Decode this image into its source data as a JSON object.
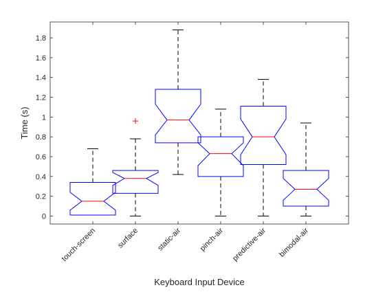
{
  "chart_data": {
    "type": "boxplot",
    "notched": true,
    "xlabel": "Keyboard Input Device",
    "ylabel": "Time (s)",
    "ylim": [
      -0.08,
      1.96
    ],
    "yticks": [
      0,
      0.2,
      0.4,
      0.6,
      0.8,
      1,
      1.2,
      1.4,
      1.6,
      1.8
    ],
    "ytick_labels": [
      "0",
      "0.2",
      "0.4",
      "0.6",
      "0.8",
      "1",
      "1.2",
      "1.4",
      "1.6",
      "1.8"
    ],
    "categories": [
      "touch-screen",
      "surface",
      "static-air",
      "pinch-air",
      "predictive-air",
      "bimodal-air"
    ],
    "boxes": [
      {
        "q1": 0.01,
        "median": 0.15,
        "q3": 0.34,
        "whisker_low": 0.01,
        "whisker_high": 0.68,
        "notch_low": 0.06,
        "notch_high": 0.24,
        "outliers": []
      },
      {
        "q1": 0.23,
        "median": 0.38,
        "q3": 0.46,
        "whisker_low": 0.0,
        "whisker_high": 0.78,
        "notch_low": 0.31,
        "notch_high": 0.44,
        "outliers": [
          0.96
        ]
      },
      {
        "q1": 0.74,
        "median": 0.97,
        "q3": 1.28,
        "whisker_low": 0.42,
        "whisker_high": 1.88,
        "notch_low": 0.82,
        "notch_high": 1.13,
        "outliers": []
      },
      {
        "q1": 0.4,
        "median": 0.63,
        "q3": 0.8,
        "whisker_low": 0.0,
        "whisker_high": 1.08,
        "notch_low": 0.51,
        "notch_high": 0.74,
        "outliers": []
      },
      {
        "q1": 0.52,
        "median": 0.8,
        "q3": 1.11,
        "whisker_low": 0.0,
        "whisker_high": 1.38,
        "notch_low": 0.62,
        "notch_high": 0.98,
        "outliers": []
      },
      {
        "q1": 0.1,
        "median": 0.27,
        "q3": 0.46,
        "whisker_low": 0.0,
        "whisker_high": 0.94,
        "notch_low": 0.16,
        "notch_high": 0.38,
        "outliers": []
      }
    ],
    "colors": {
      "box": "#0000ff",
      "median": "#ff0000",
      "whisker": "#000000",
      "outlier": "#ff0000",
      "axis": "#262626"
    },
    "grid": false,
    "legend": "none"
  }
}
